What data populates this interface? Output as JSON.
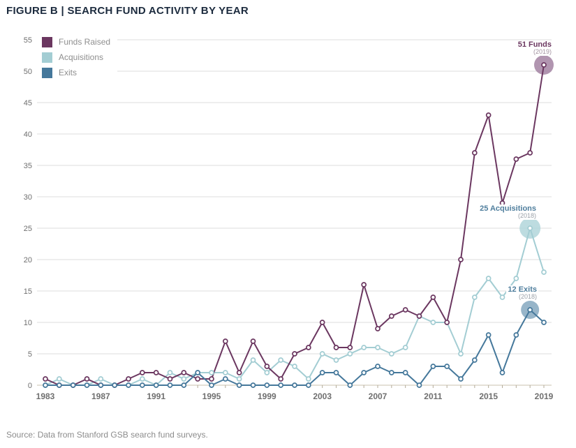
{
  "title": "FIGURE B | SEARCH FUND ACTIVITY BY YEAR",
  "source": "Source: Data from Stanford GSB search fund surveys.",
  "legend": {
    "items": [
      {
        "label": "Funds Raised"
      },
      {
        "label": "Acquisitions"
      },
      {
        "label": "Exits"
      }
    ]
  },
  "annotations": [
    {
      "label": "51 Funds",
      "sublabel": "(2019)",
      "year": 2019,
      "value": 51,
      "color": "#6b3760",
      "halo_color": "#a383a2"
    },
    {
      "label": "25 Acquisitions",
      "sublabel": "(2018)",
      "year": 2018,
      "value": 25,
      "color": "#4f7e9d",
      "halo_color": "#b2d6db"
    },
    {
      "label": "12 Exits",
      "sublabel": "(2018)",
      "year": 2018,
      "value": 12,
      "color": "#4f7e9d",
      "halo_color": "#85a8bf"
    }
  ],
  "chart_data": {
    "type": "line",
    "title": "FIGURE B | SEARCH FUND ACTIVITY BY YEAR",
    "x": [
      1983,
      1984,
      1985,
      1986,
      1987,
      1988,
      1989,
      1990,
      1991,
      1992,
      1993,
      1994,
      1995,
      1996,
      1997,
      1998,
      1999,
      2000,
      2001,
      2002,
      2003,
      2004,
      2005,
      2006,
      2007,
      2008,
      2009,
      2010,
      2011,
      2012,
      2013,
      2014,
      2015,
      2016,
      2017,
      2018,
      2019
    ],
    "xticks": [
      1983,
      1987,
      1991,
      1995,
      1999,
      2003,
      2007,
      2011,
      2015,
      2019
    ],
    "yticks": [
      0,
      5,
      10,
      15,
      20,
      25,
      30,
      35,
      40,
      45,
      50,
      55
    ],
    "ylim": [
      0,
      55
    ],
    "grid": "horizontal",
    "legend_position": "top-left",
    "series": [
      {
        "name": "Funds Raised",
        "color": "#6b3760",
        "values": [
          1,
          0,
          0,
          1,
          0,
          0,
          1,
          2,
          2,
          1,
          2,
          1,
          1,
          7,
          2,
          7,
          3,
          1,
          5,
          6,
          10,
          6,
          6,
          16,
          9,
          11,
          12,
          11,
          14,
          10,
          20,
          37,
          43,
          29,
          36,
          37,
          51
        ]
      },
      {
        "name": "Acquisitions",
        "color": "#a3cdd3",
        "values": [
          0,
          1,
          0,
          0,
          1,
          0,
          0,
          1,
          0,
          2,
          1,
          2,
          2,
          2,
          1,
          4,
          2,
          4,
          3,
          1,
          5,
          4,
          5,
          6,
          6,
          5,
          6,
          11,
          10,
          10,
          5,
          14,
          17,
          14,
          17,
          25,
          18
        ]
      },
      {
        "name": "Exits",
        "color": "#45789b",
        "values": [
          0,
          0,
          0,
          0,
          0,
          0,
          0,
          0,
          0,
          0,
          0,
          2,
          0,
          1,
          0,
          0,
          0,
          0,
          0,
          0,
          2,
          2,
          0,
          2,
          3,
          2,
          2,
          0,
          3,
          3,
          1,
          4,
          8,
          2,
          8,
          12,
          10
        ]
      }
    ]
  }
}
